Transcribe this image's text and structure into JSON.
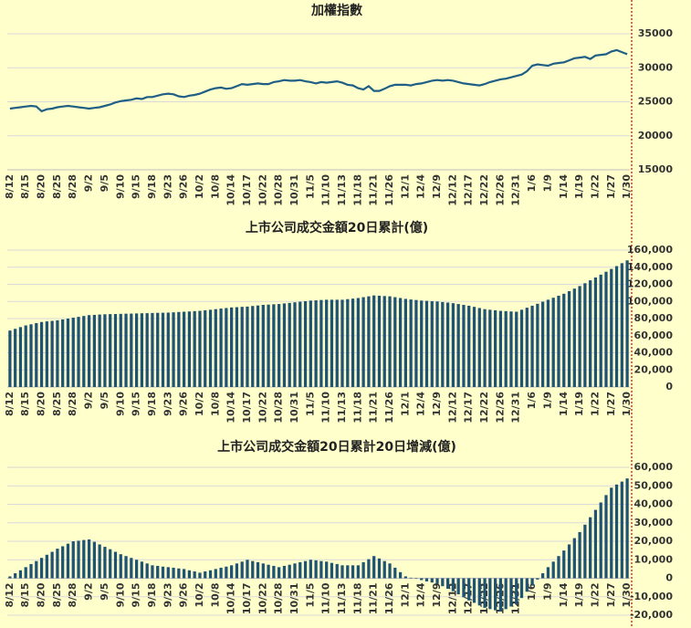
{
  "chart_data": [
    {
      "type": "line",
      "title": "加權指數",
      "color": "#1f5f86",
      "categories": [
        "8/12",
        null,
        null,
        "8/15",
        null,
        null,
        "8/20",
        null,
        null,
        "8/25",
        null,
        null,
        "8/28",
        null,
        null,
        "9/2",
        null,
        null,
        "9/5",
        null,
        null,
        "9/10",
        null,
        null,
        "9/15",
        null,
        null,
        "9/18",
        null,
        null,
        "9/23",
        null,
        null,
        "9/26",
        null,
        null,
        "10/2",
        null,
        null,
        "10/8",
        null,
        null,
        "10/14",
        null,
        null,
        "10/17",
        null,
        null,
        "10/22",
        null,
        null,
        "10/28",
        null,
        null,
        "10/31",
        null,
        null,
        "11/5",
        null,
        null,
        "11/10",
        null,
        null,
        "11/13",
        null,
        null,
        "11/18",
        null,
        null,
        "11/21",
        null,
        null,
        "11/26",
        null,
        null,
        "12/1",
        null,
        null,
        "12/4",
        null,
        null,
        "12/9",
        null,
        null,
        "12/12",
        null,
        null,
        "12/17",
        null,
        null,
        "12/22",
        null,
        null,
        "12/26",
        null,
        null,
        "12/31",
        null,
        null,
        "1/6",
        null,
        null,
        "1/9",
        null,
        null,
        "1/14",
        null,
        null,
        "1/19",
        null,
        null,
        "1/22",
        null,
        null,
        "1/27",
        null,
        null,
        "1/30"
      ],
      "values": [
        24000,
        24100,
        24200,
        24300,
        24400,
        24300,
        23600,
        23900,
        24000,
        24200,
        24300,
        24400,
        24300,
        24200,
        24100,
        24000,
        24100,
        24200,
        24400,
        24600,
        24900,
        25100,
        25200,
        25300,
        25500,
        25400,
        25700,
        25700,
        25900,
        26100,
        26200,
        26100,
        25800,
        25700,
        25900,
        26000,
        26200,
        26500,
        26800,
        27000,
        27100,
        26900,
        27000,
        27300,
        27600,
        27500,
        27600,
        27700,
        27600,
        27600,
        27900,
        28000,
        28200,
        28100,
        28100,
        28200,
        28000,
        27900,
        27700,
        27900,
        27800,
        27900,
        28000,
        27800,
        27500,
        27400,
        27000,
        26800,
        27300,
        26600,
        26600,
        26900,
        27300,
        27500,
        27500,
        27500,
        27400,
        27600,
        27700,
        27900,
        28100,
        28200,
        28100,
        28200,
        28100,
        27900,
        27700,
        27600,
        27500,
        27400,
        27600,
        27900,
        28100,
        28300,
        28400,
        28600,
        28800,
        29000,
        29500,
        30300,
        30500,
        30400,
        30300,
        30600,
        30700,
        30800,
        31100,
        31400,
        31500,
        31600,
        31300,
        31800,
        31900,
        32000,
        32400,
        32600,
        32300,
        32000
      ],
      "ylim": [
        15000,
        35000
      ],
      "yticks": [
        15000,
        20000,
        25000,
        30000,
        35000
      ],
      "grid": true
    },
    {
      "type": "bar",
      "title": "上市公司成交金額20日累計(億)",
      "color": "#1f5374",
      "categories": [
        "8/12",
        null,
        null,
        "8/15",
        null,
        null,
        "8/20",
        null,
        null,
        "8/25",
        null,
        null,
        "8/28",
        null,
        null,
        "9/2",
        null,
        null,
        "9/5",
        null,
        null,
        "9/10",
        null,
        null,
        "9/15",
        null,
        null,
        "9/18",
        null,
        null,
        "9/23",
        null,
        null,
        "9/26",
        null,
        null,
        "10/2",
        null,
        null,
        "10/8",
        null,
        null,
        "10/14",
        null,
        null,
        "10/17",
        null,
        null,
        "10/22",
        null,
        null,
        "10/28",
        null,
        null,
        "10/31",
        null,
        null,
        "11/5",
        null,
        null,
        "11/10",
        null,
        null,
        "11/13",
        null,
        null,
        "11/18",
        null,
        null,
        "11/21",
        null,
        null,
        "11/26",
        null,
        null,
        "12/1",
        null,
        null,
        "12/4",
        null,
        null,
        "12/9",
        null,
        null,
        "12/12",
        null,
        null,
        "12/17",
        null,
        null,
        "12/22",
        null,
        null,
        "12/26",
        null,
        null,
        "12/31",
        null,
        null,
        "1/6",
        null,
        null,
        "1/9",
        null,
        null,
        "1/14",
        null,
        null,
        "1/19",
        null,
        null,
        "1/22",
        null,
        null,
        "1/27",
        null,
        null,
        "1/30"
      ],
      "values": [
        66000,
        68000,
        70000,
        72000,
        73300,
        74700,
        76000,
        76700,
        77300,
        78000,
        79000,
        80000,
        81000,
        82000,
        83000,
        84000,
        84300,
        84700,
        85000,
        85200,
        85300,
        85500,
        85700,
        85800,
        86000,
        86200,
        86300,
        86500,
        86700,
        86800,
        87000,
        87300,
        87700,
        88000,
        88300,
        88700,
        89000,
        89700,
        90300,
        91000,
        91700,
        92300,
        93000,
        93300,
        93700,
        94000,
        94700,
        95300,
        96000,
        96300,
        96700,
        97000,
        97700,
        98300,
        99000,
        99700,
        100300,
        101000,
        101300,
        101700,
        102000,
        102000,
        102000,
        102000,
        102700,
        103300,
        104000,
        105000,
        106000,
        107000,
        106700,
        106300,
        106000,
        105000,
        104000,
        103000,
        102300,
        101700,
        101000,
        100700,
        100300,
        100000,
        99300,
        98700,
        98000,
        97000,
        96000,
        95000,
        93700,
        92300,
        91000,
        90300,
        89700,
        89000,
        88700,
        88300,
        88000,
        90300,
        92700,
        95000,
        97300,
        99700,
        102000,
        104300,
        106700,
        109000,
        112000,
        115000,
        118000,
        121300,
        124700,
        128000,
        131300,
        134700,
        138000,
        141300,
        144700,
        148000
      ],
      "ylim": [
        0,
        160000
      ],
      "yticks": [
        0,
        {
          "value": 20000,
          "label": "20,000"
        },
        {
          "value": 40000,
          "label": "40,000"
        },
        {
          "value": 60000,
          "label": "60,000"
        },
        {
          "value": 80000,
          "label": "80,000"
        },
        {
          "value": 100000,
          "label": "100,000"
        },
        {
          "value": 120000,
          "label": "120,000"
        },
        {
          "value": 140000,
          "label": "140,000"
        },
        {
          "value": 160000,
          "label": "160,000"
        }
      ],
      "grid": true
    },
    {
      "type": "bar",
      "title": "上市公司成交金額20日累計20日增減(億)",
      "color": "#1f5374",
      "categories": [
        "8/12",
        null,
        null,
        "8/15",
        null,
        null,
        "8/20",
        null,
        null,
        "8/25",
        null,
        null,
        "8/28",
        null,
        null,
        "9/2",
        null,
        null,
        "9/5",
        null,
        null,
        "9/10",
        null,
        null,
        "9/15",
        null,
        null,
        "9/18",
        null,
        null,
        "9/23",
        null,
        null,
        "9/26",
        null,
        null,
        "10/2",
        null,
        null,
        "10/8",
        null,
        null,
        "10/14",
        null,
        null,
        "10/17",
        null,
        null,
        "10/22",
        null,
        null,
        "10/28",
        null,
        null,
        "10/31",
        null,
        null,
        "11/5",
        null,
        null,
        "11/10",
        null,
        null,
        "11/13",
        null,
        null,
        "11/18",
        null,
        null,
        "11/21",
        null,
        null,
        "11/26",
        null,
        null,
        "12/1",
        null,
        null,
        "12/4",
        null,
        null,
        "12/9",
        null,
        null,
        "12/12",
        null,
        null,
        "12/17",
        null,
        null,
        "12/22",
        null,
        null,
        "12/26",
        null,
        null,
        "12/31",
        null,
        null,
        "1/6",
        null,
        null,
        "1/9",
        null,
        null,
        "1/14",
        null,
        null,
        "1/19",
        null,
        null,
        "1/22",
        null,
        null,
        "1/27",
        null,
        null,
        "1/30"
      ],
      "values": [
        1000,
        2700,
        4300,
        6000,
        7700,
        9300,
        11000,
        12700,
        14300,
        16000,
        17300,
        18700,
        20000,
        20300,
        20700,
        21000,
        19700,
        18300,
        17000,
        15700,
        14300,
        13000,
        12000,
        11000,
        10000,
        9000,
        8000,
        7000,
        6700,
        6300,
        6000,
        5700,
        5300,
        5000,
        4300,
        3700,
        3000,
        3700,
        4300,
        5000,
        5700,
        6300,
        7000,
        8000,
        9000,
        10000,
        9300,
        8700,
        8000,
        7300,
        6700,
        6000,
        6700,
        7300,
        8000,
        8700,
        9300,
        10000,
        9700,
        9300,
        9000,
        8300,
        7700,
        7000,
        7000,
        7000,
        7000,
        8700,
        10300,
        12000,
        10700,
        9300,
        8000,
        5700,
        3300,
        1000,
        300,
        -300,
        -1000,
        -1700,
        -2300,
        -3000,
        -4300,
        -5700,
        -7000,
        -8700,
        -10300,
        -12000,
        -13300,
        -14700,
        -16000,
        -16700,
        -17300,
        -18000,
        -16700,
        -15300,
        -14000,
        -10700,
        -7300,
        -4000,
        -700,
        2700,
        6000,
        9000,
        12000,
        15000,
        18300,
        21700,
        25000,
        29000,
        33000,
        37000,
        41000,
        45000,
        49000,
        50700,
        52300,
        54000
      ],
      "ylim": [
        -20000,
        60000
      ],
      "yticks": [
        {
          "value": -20000,
          "label": "-20,000"
        },
        {
          "value": -10000,
          "label": "-10,000"
        },
        0,
        {
          "value": 10000,
          "label": "10,000"
        },
        {
          "value": 20000,
          "label": "20,000"
        },
        {
          "value": 30000,
          "label": "30,000"
        },
        {
          "value": 40000,
          "label": "40,000"
        },
        {
          "value": 50000,
          "label": "50,000"
        },
        {
          "value": 60000,
          "label": "60,000"
        }
      ],
      "grid": true
    }
  ]
}
